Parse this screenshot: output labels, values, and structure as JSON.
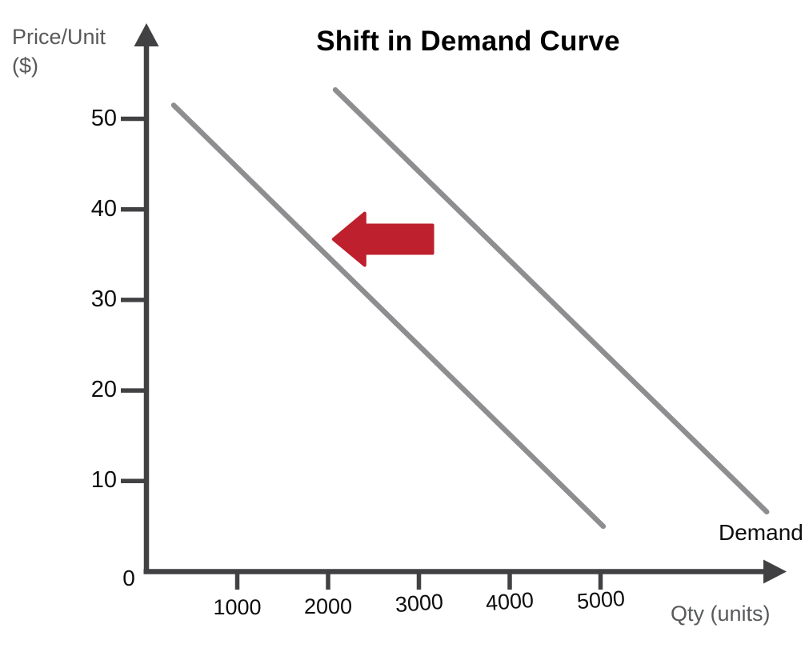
{
  "title": "Shift in Demand Curve",
  "y_axis": {
    "label_line1": "Price/Unit",
    "label_line2": "($)",
    "ticks": [
      "10",
      "20",
      "30",
      "40",
      "50"
    ]
  },
  "x_axis": {
    "label": "Qty (units)",
    "origin_label": "0",
    "ticks": [
      "1000",
      "2000",
      "3000",
      "4000",
      "5000"
    ]
  },
  "curve_label": "Demand",
  "colors": {
    "axis": "#414042",
    "curve": "#8e8e90",
    "arrow": "#be202e",
    "muted_text": "#58595b",
    "text": "#0d0d0d"
  },
  "chart_data": {
    "type": "line",
    "title": "Shift in Demand Curve",
    "xlabel": "Qty (units)",
    "ylabel": "Price/Unit ($)",
    "xlim": [
      0,
      7000
    ],
    "ylim": [
      0,
      57
    ],
    "x_ticks": [
      1000,
      2000,
      3000,
      4000,
      5000
    ],
    "y_ticks": [
      0,
      10,
      20,
      30,
      40,
      50
    ],
    "grid": false,
    "legend_position": "none",
    "series": [
      {
        "name": "Demand (original)",
        "color": "#8e8e90",
        "points": [
          [
            2080,
            53.2
          ],
          [
            6830,
            6.6
          ]
        ],
        "end_label": "Demand"
      },
      {
        "name": "Demand (shifted left)",
        "color": "#8e8e90",
        "points": [
          [
            300,
            51.5
          ],
          [
            5030,
            5.0
          ]
        ],
        "end_label": ""
      }
    ],
    "annotations": [
      {
        "type": "block-arrow",
        "direction": "left",
        "color": "#be202e",
        "from": [
          3150,
          36.7
        ],
        "to": [
          2060,
          36.7
        ]
      }
    ]
  }
}
